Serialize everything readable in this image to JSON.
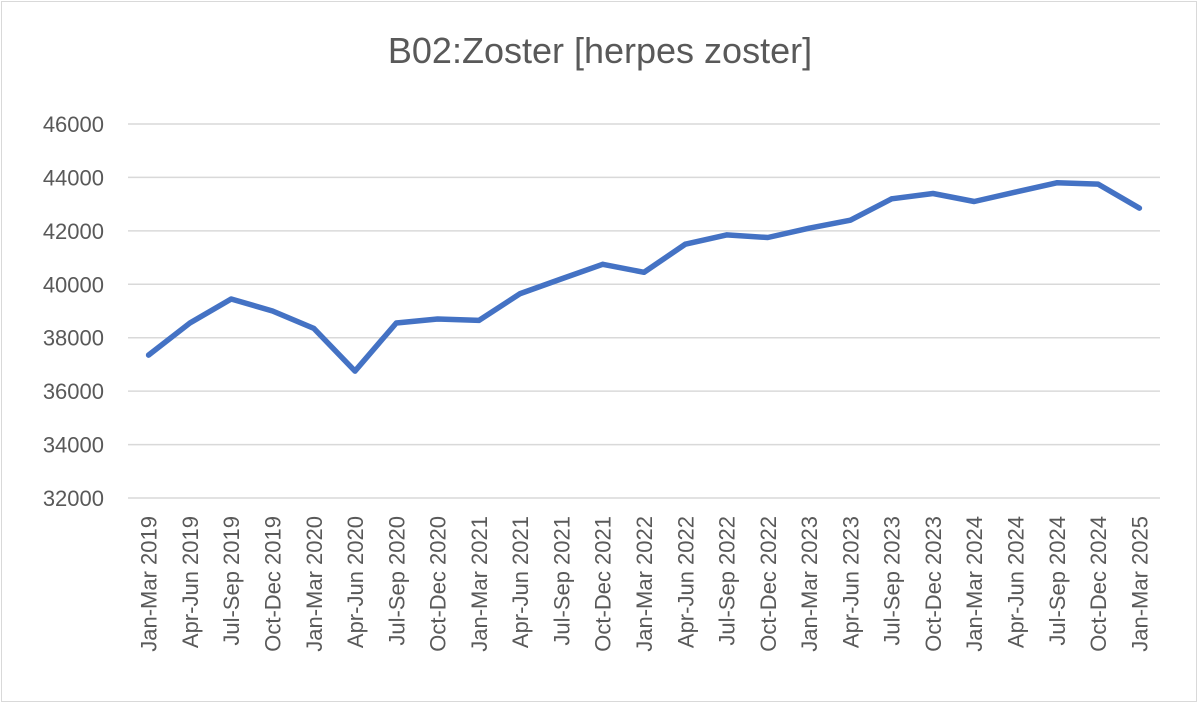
{
  "chart_data": {
    "type": "line",
    "title": "B02:Zoster [herpes zoster]",
    "xlabel": "",
    "ylabel": "",
    "ylim": [
      32000,
      46000
    ],
    "yticks": [
      32000,
      34000,
      36000,
      38000,
      40000,
      42000,
      44000,
      46000
    ],
    "grid": true,
    "legend": "none",
    "categories": [
      "Jan-Mar 2019",
      "Apr-Jun 2019",
      "Jul-Sep 2019",
      "Oct-Dec 2019",
      "Jan-Mar 2020",
      "Apr-Jun 2020",
      "Jul-Sep 2020",
      "Oct-Dec 2020",
      "Jan-Mar 2021",
      "Apr-Jun 2021",
      "Jul-Sep 2021",
      "Oct-Dec 2021",
      "Jan-Mar 2022",
      "Apr-Jun 2022",
      "Jul-Sep 2022",
      "Oct-Dec 2022",
      "Jan-Mar 2023",
      "Apr-Jun 2023",
      "Jul-Sep 2023",
      "Oct-Dec 2023",
      "Jan-Mar 2024",
      "Apr-Jun 2024",
      "Jul-Sep 2024",
      "Oct-Dec 2024",
      "Jan-Mar 2025"
    ],
    "series": [
      {
        "color": "#4472c4",
        "values": [
          37350,
          38550,
          39450,
          39000,
          38350,
          36750,
          38550,
          38700,
          38650,
          39650,
          40200,
          40750,
          40450,
          41500,
          41850,
          41750,
          42100,
          42400,
          43200,
          43400,
          43100,
          43450,
          43800,
          43750,
          42850
        ]
      }
    ]
  }
}
